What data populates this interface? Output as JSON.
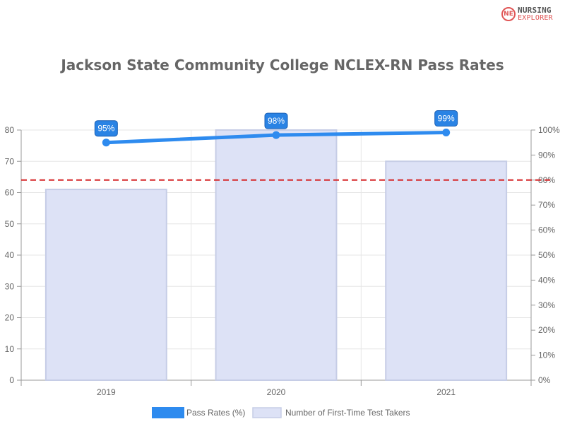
{
  "logo": {
    "line1": "NURSING",
    "line2": "EXPLORER"
  },
  "colors": {
    "line": "#2e8bef",
    "bar_fill": "#dde2f6",
    "bar_stroke": "#c6cde6",
    "grid": "#e6e6e6",
    "reference": "#d62728",
    "label_bg": "#2a83e4",
    "label_border": "#1a5fb4"
  },
  "chart_data": {
    "type": "bar",
    "title": "Jackson State Community College NCLEX-RN Pass Rates",
    "categories": [
      "2019",
      "2020",
      "2021"
    ],
    "series": [
      {
        "name": "Pass Rates (%)",
        "type": "line",
        "axis": "right",
        "values": [
          95,
          98,
          99
        ],
        "labels": [
          "95%",
          "98%",
          "99%"
        ]
      },
      {
        "name": "Number of First-Time Test Takers",
        "type": "bar",
        "axis": "left",
        "values": [
          61,
          80,
          70
        ]
      }
    ],
    "y_left": {
      "min": 0,
      "max": 80,
      "ticks": [
        "0",
        "10",
        "20",
        "30",
        "40",
        "50",
        "60",
        "70",
        "80"
      ]
    },
    "y_right": {
      "min": 0,
      "max": 100,
      "ticks": [
        "0%",
        "10%",
        "20%",
        "30%",
        "40%",
        "50%",
        "60%",
        "70%",
        "80%",
        "90%",
        "100%"
      ]
    },
    "reference_line": {
      "axis": "right",
      "value": 80,
      "style": "dashed"
    },
    "grid": true,
    "legend_position": "bottom"
  }
}
